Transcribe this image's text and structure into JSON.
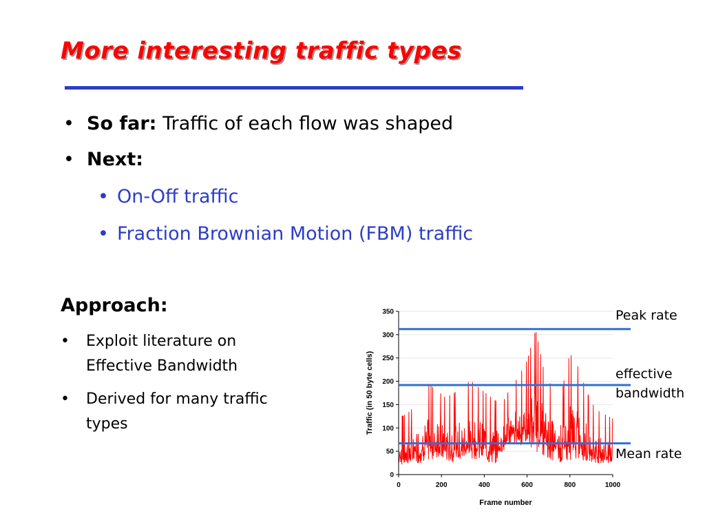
{
  "slide": {
    "title": "More interesting traffic types",
    "bullets": [
      {
        "bold": "So far:",
        "text": " Traffic of each flow was shaped"
      },
      {
        "bold": "Next:",
        "text": ""
      }
    ],
    "sub_bullets": [
      "On-Off traffic",
      "Fraction Brownian Motion (FBM) traffic"
    ],
    "approach_heading": "Approach:",
    "approach_bullets": [
      {
        "line1": "Exploit literature on",
        "line2": "Effective Bandwidth"
      },
      {
        "line1": "Derived for many traffic",
        "line2": "types"
      }
    ],
    "bullet_symbol": "•"
  },
  "annotations": {
    "peak": "Peak rate",
    "effective_line1": "effective",
    "effective_line2": "bandwidth",
    "mean": "Mean rate"
  },
  "colors": {
    "title": "#ff0000",
    "accent": "#2b3cc9",
    "trace": "#ff0000",
    "reference_lines": "#2f6fd6"
  },
  "chart_data": {
    "type": "line",
    "xlabel": "Frame number",
    "ylabel": "Traffic (in 50 byte cells)",
    "xlim": [
      0,
      1000
    ],
    "ylim": [
      0,
      350
    ],
    "xticks": [
      0,
      200,
      400,
      600,
      800,
      1000
    ],
    "yticks": [
      0,
      50,
      100,
      150,
      200,
      250,
      300,
      350
    ],
    "reference_lines": [
      {
        "label": "Peak rate",
        "y": 312
      },
      {
        "label": "effective bandwidth",
        "y": 192
      },
      {
        "label": "Mean rate",
        "y": 67
      }
    ],
    "envelope": {
      "x": [
        0,
        50,
        100,
        140,
        180,
        220,
        260,
        300,
        340,
        380,
        420,
        450,
        480,
        520,
        560,
        600,
        640,
        680,
        720,
        760,
        800,
        840,
        880,
        920,
        960,
        1000
      ],
      "low": [
        20,
        22,
        25,
        30,
        35,
        30,
        25,
        30,
        35,
        30,
        25,
        20,
        45,
        60,
        65,
        55,
        50,
        40,
        30,
        25,
        25,
        30,
        28,
        25,
        22,
        20
      ],
      "high": [
        120,
        135,
        160,
        195,
        180,
        165,
        175,
        195,
        200,
        185,
        170,
        160,
        150,
        185,
        210,
        245,
        310,
        220,
        185,
        175,
        260,
        230,
        175,
        140,
        130,
        120
      ]
    }
  }
}
